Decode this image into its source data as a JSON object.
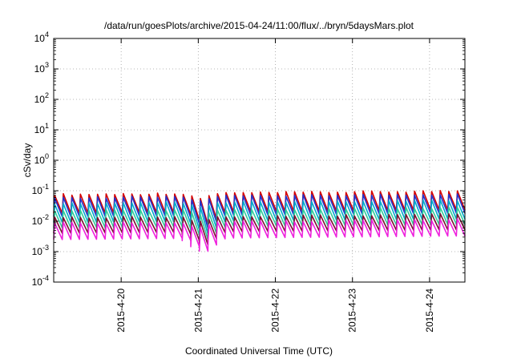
{
  "chart_data": {
    "type": "line",
    "title": "/data/run/goesPlots/archive/2015-04-24/11:00/flux/../bryn/5daysMars.plot",
    "xlabel": "Coordinated Universal Time (UTC)",
    "ylabel": "cSv/day",
    "yscale": "log",
    "ylim": [
      0.0001,
      10000
    ],
    "y_ticks": [
      {
        "base": "10",
        "exp": "-4",
        "value": 0.0001
      },
      {
        "base": "10",
        "exp": "-3",
        "value": 0.001
      },
      {
        "base": "10",
        "exp": "-2",
        "value": 0.01
      },
      {
        "base": "10",
        "exp": "-1",
        "value": 0.1
      },
      {
        "base": "10",
        "exp": "0",
        "value": 1
      },
      {
        "base": "10",
        "exp": "1",
        "value": 10
      },
      {
        "base": "10",
        "exp": "2",
        "value": 100
      },
      {
        "base": "10",
        "exp": "3",
        "value": 1000
      },
      {
        "base": "10",
        "exp": "4",
        "value": 10000
      }
    ],
    "xlim": [
      "2015-04-19 03:00",
      "2015-04-24 11:00"
    ],
    "x_ticks": [
      "2015-4-20",
      "2015-4-21",
      "2015-4-22",
      "2015-4-23",
      "2015-4-24"
    ],
    "x_tick_dates": [
      "2015-04-20",
      "2015-04-21",
      "2015-04-22",
      "2015-04-23",
      "2015-04-24"
    ],
    "grid": true,
    "pattern": "sawtooth, approximately 9 cycles per day",
    "series": [
      {
        "color": "#d40000",
        "peak": 0.07,
        "trough": 0.018
      },
      {
        "color": "#2233cc",
        "peak": 0.055,
        "trough": 0.014
      },
      {
        "color": "#00aacc",
        "peak": 0.035,
        "trough": 0.009
      },
      {
        "color": "#33cc99",
        "peak": 0.02,
        "trough": 0.006
      },
      {
        "color": "#7a1030",
        "peak": 0.012,
        "trough": 0.004
      },
      {
        "color": "#ee22dd",
        "peak": 0.008,
        "trough": 0.0025
      }
    ]
  }
}
